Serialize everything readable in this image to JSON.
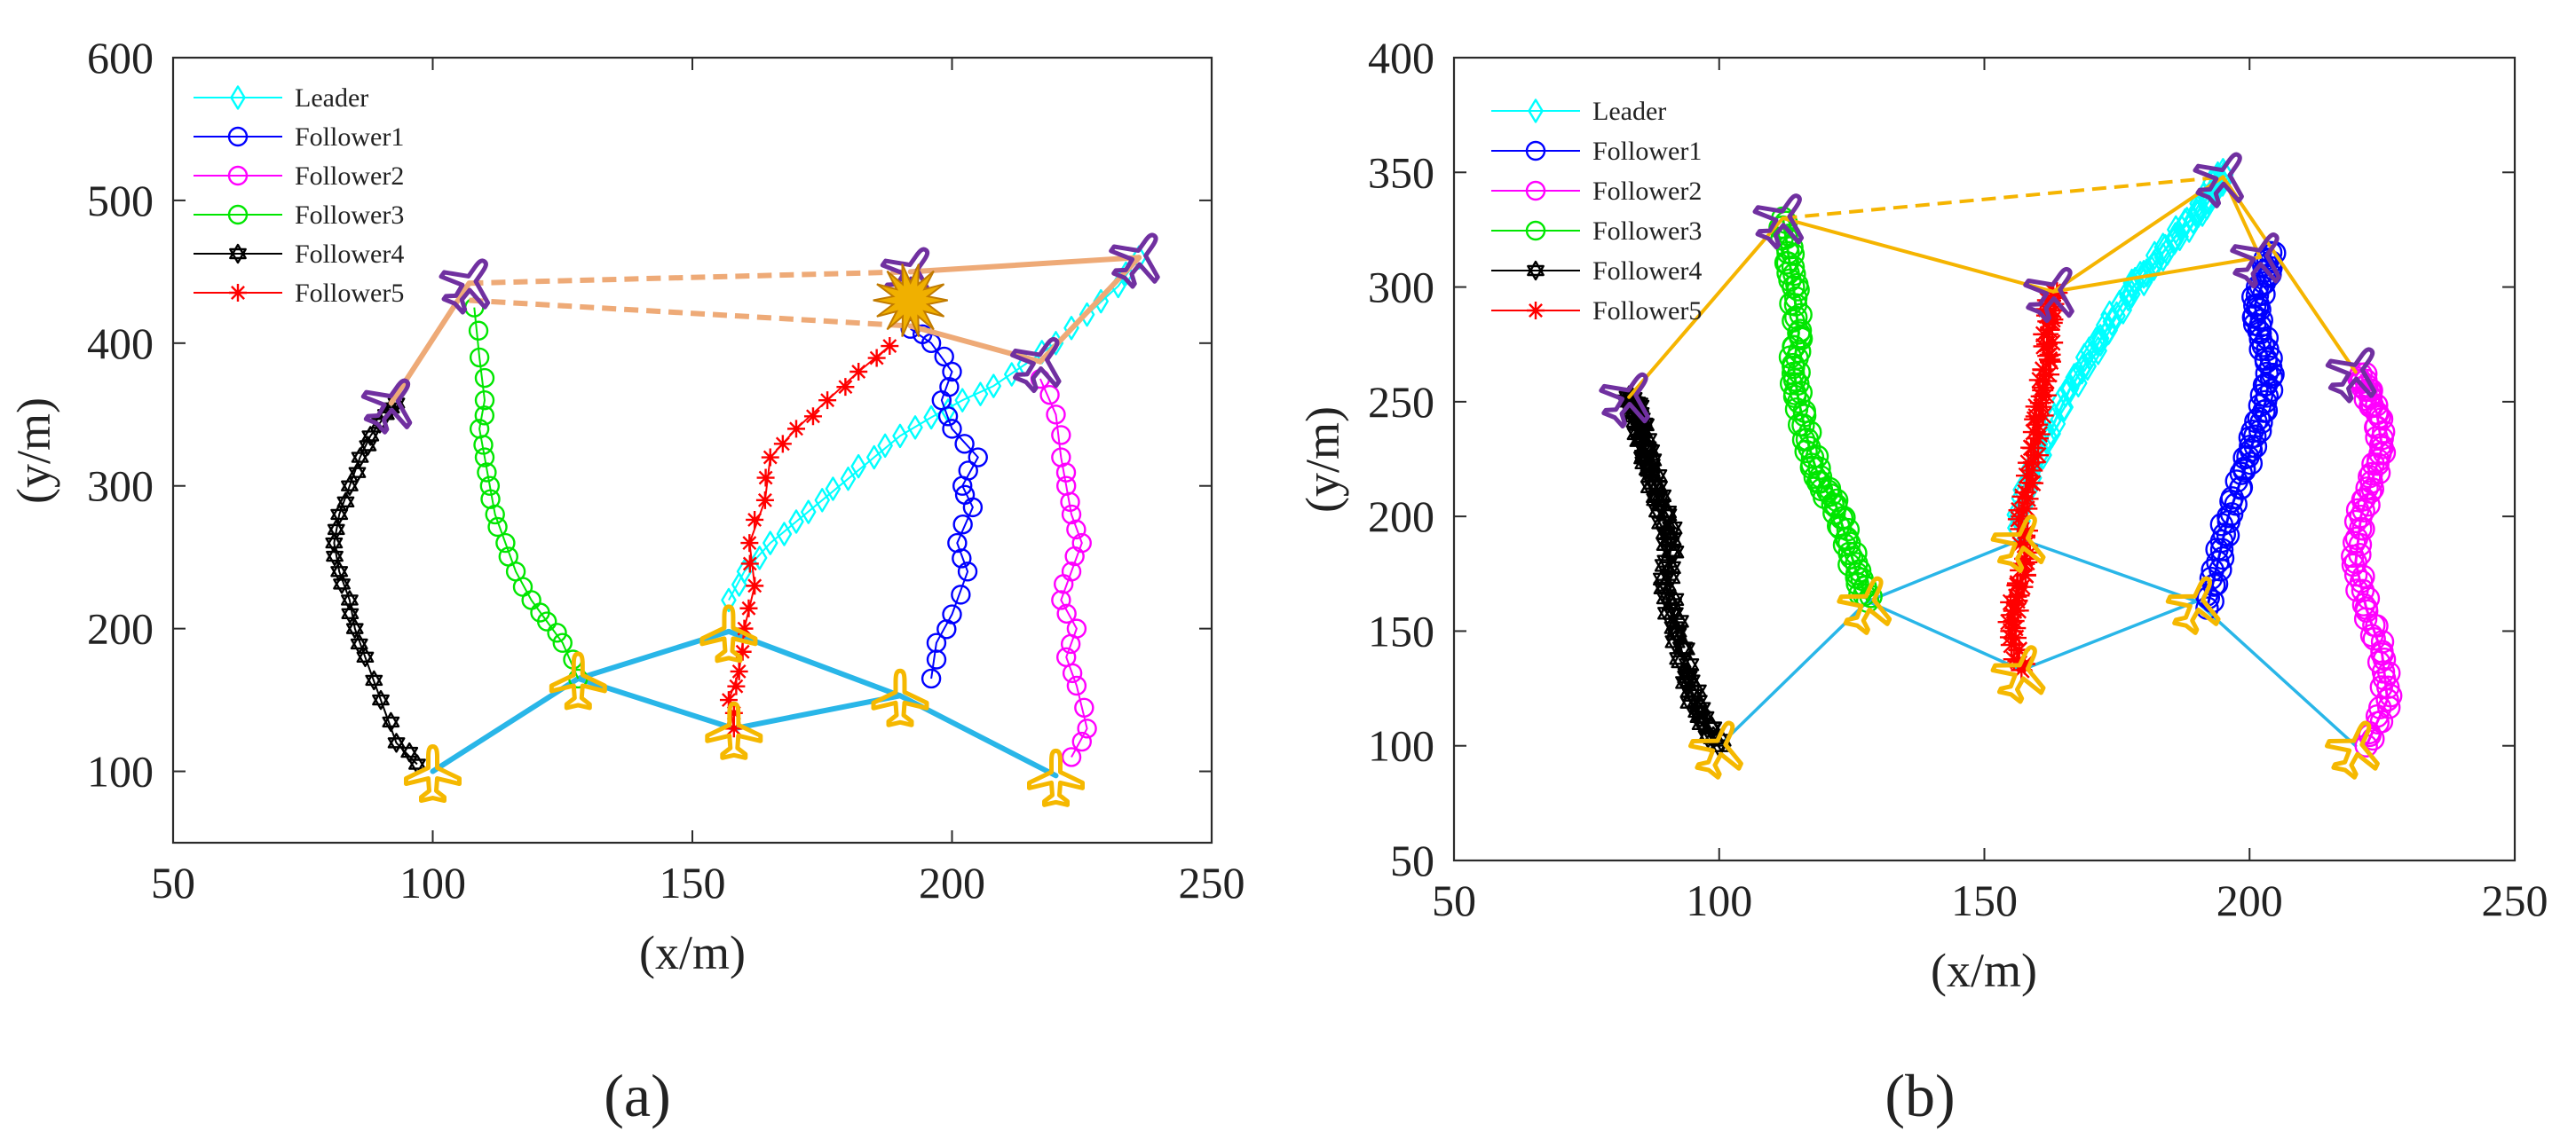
{
  "figure": {
    "panel_labels": [
      "(a)",
      "(b)"
    ]
  },
  "colors": {
    "Leader": "#00ffff",
    "Follower1": "#0000ff",
    "Follower2": "#ff00ff",
    "Follower3": "#00e600",
    "Follower4": "#000000",
    "Follower5": "#ff0000",
    "formation_initial": "#29b6e8",
    "formation_final_a": "#eeaa77",
    "formation_final_b": "#f5b400",
    "plane_initial": "#f5b800",
    "plane_final": "#7030a0",
    "explosion": "#f0b000"
  },
  "chart_data": [
    {
      "id": "a",
      "type": "line",
      "panel_label": "(a)",
      "xlabel": "(x/m)",
      "ylabel": "(y/m)",
      "xlim": [
        50,
        250
      ],
      "ylim": [
        50,
        600
      ],
      "xticks": [
        50,
        100,
        150,
        200,
        250
      ],
      "yticks": [
        100,
        200,
        300,
        400,
        500,
        600
      ],
      "legend": [
        "Leader",
        "Follower1",
        "Follower2",
        "Follower3",
        "Follower4",
        "Follower5"
      ],
      "legend_position": "top-left",
      "series": [
        {
          "name": "Leader",
          "marker": "diamond",
          "x": [
            157,
            160,
            165,
            170,
            175,
            180,
            185,
            190,
            196,
            202,
            208,
            214,
            220,
            226,
            232,
            236
          ],
          "y": [
            220,
            240,
            260,
            275,
            290,
            305,
            320,
            335,
            348,
            360,
            370,
            385,
            400,
            420,
            440,
            460
          ]
        },
        {
          "name": "Follower1",
          "marker": "circle",
          "x": [
            196,
            197,
            200,
            203,
            201,
            204,
            202,
            205,
            200,
            198,
            200,
            196,
            192
          ],
          "y": [
            165,
            190,
            210,
            240,
            260,
            285,
            300,
            320,
            340,
            360,
            380,
            400,
            410
          ]
        },
        {
          "name": "Follower2",
          "marker": "circle",
          "x": [
            223,
            226,
            224,
            222,
            224,
            221,
            223,
            225,
            223,
            222,
            221,
            220,
            217
          ],
          "y": [
            110,
            130,
            160,
            180,
            200,
            220,
            240,
            260,
            280,
            300,
            320,
            350,
            375
          ]
        },
        {
          "name": "Follower3",
          "marker": "circle",
          "x": [
            128,
            125,
            122,
            119,
            116,
            114,
            112,
            111,
            110,
            109,
            110,
            109,
            108
          ],
          "y": [
            165,
            190,
            205,
            220,
            240,
            260,
            280,
            300,
            320,
            340,
            360,
            390,
            425
          ]
        },
        {
          "name": "Follower4",
          "marker": "hexagram",
          "x": [
            97,
            93,
            90,
            87,
            85,
            84,
            82,
            81,
            82,
            84,
            86,
            88,
            91,
            93
          ],
          "y": [
            105,
            120,
            150,
            180,
            200,
            220,
            240,
            260,
            280,
            300,
            320,
            335,
            350,
            358
          ]
        },
        {
          "name": "Follower5",
          "marker": "asterisk",
          "x": [
            158,
            157,
            159,
            160,
            162,
            161,
            164,
            165,
            170,
            176,
            182,
            188
          ],
          "y": [
            130,
            150,
            170,
            200,
            230,
            260,
            290,
            320,
            340,
            360,
            380,
            398
          ]
        }
      ],
      "formation_initial": {
        "points": [
          [
            100,
            100
          ],
          [
            128,
            165
          ],
          [
            157,
            198
          ],
          [
            158,
            130
          ],
          [
            190,
            153
          ],
          [
            220,
            97
          ]
        ],
        "edges": [
          [
            0,
            1
          ],
          [
            1,
            2
          ],
          [
            2,
            4
          ],
          [
            4,
            5
          ],
          [
            1,
            3
          ],
          [
            3,
            4
          ]
        ]
      },
      "formation_final": {
        "points": [
          [
            92,
            358
          ],
          [
            107,
            442
          ],
          [
            107,
            430
          ],
          [
            192,
            450
          ],
          [
            192,
            412
          ],
          [
            217,
            387
          ],
          [
            236,
            460
          ]
        ],
        "solid_edges": [
          [
            0,
            1
          ],
          [
            3,
            6
          ],
          [
            4,
            5
          ],
          [
            5,
            6
          ]
        ],
        "dashed_edges": [
          [
            1,
            3
          ],
          [
            2,
            4
          ]
        ]
      },
      "explosion_at": [
        192,
        430
      ]
    },
    {
      "id": "b",
      "type": "line",
      "panel_label": "(b)",
      "xlabel": "(x/m)",
      "ylabel": "(y/m)",
      "xlim": [
        50,
        250
      ],
      "ylim": [
        50,
        400
      ],
      "xticks": [
        50,
        100,
        150,
        200,
        250
      ],
      "yticks": [
        50,
        100,
        150,
        200,
        250,
        300,
        350,
        400
      ],
      "legend": [
        "Leader",
        "Follower1",
        "Follower2",
        "Follower3",
        "Follower4",
        "Follower5"
      ],
      "legend_position": "top-left",
      "series": [
        {
          "name": "Leader",
          "marker": "diamond",
          "x": [
            156,
            158,
            162,
            166,
            170,
            174,
            178,
            182,
            186,
            190,
            193,
            195
          ],
          "y": [
            195,
            215,
            235,
            255,
            270,
            285,
            300,
            310,
            322,
            332,
            342,
            350
          ]
        },
        {
          "name": "Follower1",
          "marker": "circle",
          "x": [
            192,
            194,
            196,
            199,
            201,
            203,
            204,
            202,
            201,
            203,
            204
          ],
          "y": [
            160,
            180,
            200,
            220,
            235,
            250,
            265,
            280,
            292,
            305,
            315
          ]
        },
        {
          "name": "Follower2",
          "marker": "circle",
          "x": [
            222,
            226,
            225,
            222,
            220,
            221,
            223,
            225,
            224,
            222,
            221
          ],
          "y": [
            100,
            120,
            140,
            160,
            180,
            200,
            215,
            230,
            245,
            255,
            262
          ]
        },
        {
          "name": "Follower3",
          "marker": "circle",
          "x": [
            128,
            126,
            124,
            122,
            119,
            117,
            115,
            114,
            115,
            114,
            113,
            112
          ],
          "y": [
            163,
            175,
            190,
            205,
            215,
            230,
            250,
            265,
            280,
            300,
            315,
            330
          ]
        },
        {
          "name": "Follower4",
          "marker": "hexagram",
          "x": [
            100,
            96,
            94,
            92,
            90,
            91,
            89,
            87,
            86,
            85,
            84,
            83
          ],
          "y": [
            100,
            115,
            130,
            150,
            170,
            190,
            205,
            220,
            230,
            240,
            248,
            252
          ]
        },
        {
          "name": "Follower5",
          "marker": "asterisk",
          "x": [
            157,
            155,
            156,
            158,
            157,
            159,
            160,
            161,
            162,
            162,
            163
          ],
          "y": [
            133,
            150,
            165,
            180,
            200,
            220,
            240,
            255,
            270,
            285,
            298
          ]
        }
      ],
      "formation_initial": {
        "points": [
          [
            100,
            100
          ],
          [
            128,
            163
          ],
          [
            157,
            190
          ],
          [
            157,
            133
          ],
          [
            190,
            163
          ],
          [
            220,
            100
          ]
        ],
        "edges": [
          [
            0,
            1
          ],
          [
            1,
            2
          ],
          [
            2,
            4
          ],
          [
            4,
            5
          ],
          [
            1,
            3
          ],
          [
            3,
            4
          ]
        ]
      },
      "formation_final": {
        "points": [
          [
            83,
            252
          ],
          [
            112,
            330
          ],
          [
            163,
            298
          ],
          [
            195,
            348
          ],
          [
            202,
            313
          ],
          [
            220,
            263
          ]
        ],
        "solid_edges": [
          [
            0,
            1
          ],
          [
            1,
            2
          ],
          [
            2,
            3
          ],
          [
            2,
            4
          ],
          [
            3,
            4
          ],
          [
            3,
            5
          ]
        ],
        "dashed_edges": [
          [
            1,
            3
          ]
        ]
      }
    }
  ]
}
